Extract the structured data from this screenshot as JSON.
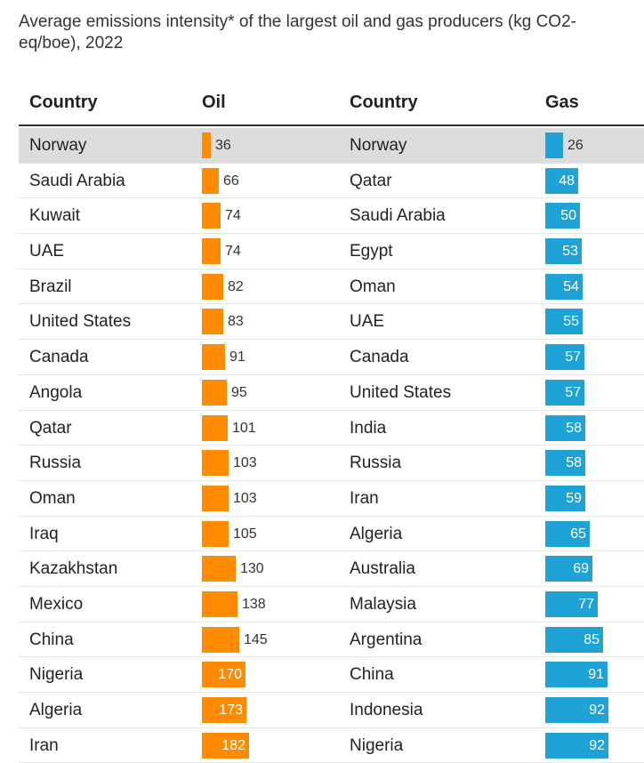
{
  "title": "Average emissions intensity* of the largest oil and gas producers (kg CO2-eq/boe), 2022",
  "headers": {
    "country_oil": "Country",
    "oil": "Oil",
    "country_gas": "Country",
    "gas": "Gas"
  },
  "colors": {
    "oil": "#ff8c00",
    "gas": "#1fa2d6",
    "highlight_row": "#dcdcdc"
  },
  "highlight_country": "Norway",
  "chart_data": {
    "type": "table",
    "title": "Average emissions intensity* of the largest oil and gas producers (kg CO2-eq/boe), 2022",
    "columns": [
      "Country",
      "Oil",
      "Country",
      "Gas"
    ],
    "oil": [
      {
        "country": "Norway",
        "value": 36
      },
      {
        "country": "Saudi Arabia",
        "value": 66
      },
      {
        "country": "Kuwait",
        "value": 74
      },
      {
        "country": "UAE",
        "value": 74
      },
      {
        "country": "Brazil",
        "value": 82
      },
      {
        "country": "United States",
        "value": 83
      },
      {
        "country": "Canada",
        "value": 91
      },
      {
        "country": "Angola",
        "value": 95
      },
      {
        "country": "Qatar",
        "value": 101
      },
      {
        "country": "Russia",
        "value": 103
      },
      {
        "country": "Oman",
        "value": 103
      },
      {
        "country": "Iraq",
        "value": 105
      },
      {
        "country": "Kazakhstan",
        "value": 130
      },
      {
        "country": "Mexico",
        "value": 138
      },
      {
        "country": "China",
        "value": 145
      },
      {
        "country": "Nigeria",
        "value": 170
      },
      {
        "country": "Algeria",
        "value": 173
      },
      {
        "country": "Iran",
        "value": 182
      }
    ],
    "gas": [
      {
        "country": "Norway",
        "value": 26
      },
      {
        "country": "Qatar",
        "value": 48
      },
      {
        "country": "Saudi Arabia",
        "value": 50
      },
      {
        "country": "Egypt",
        "value": 53
      },
      {
        "country": "Oman",
        "value": 54
      },
      {
        "country": "UAE",
        "value": 55
      },
      {
        "country": "Canada",
        "value": 57
      },
      {
        "country": "United States",
        "value": 57
      },
      {
        "country": "India",
        "value": 58
      },
      {
        "country": "Russia",
        "value": 58
      },
      {
        "country": "Iran",
        "value": 59
      },
      {
        "country": "Algeria",
        "value": 65
      },
      {
        "country": "Australia",
        "value": 69
      },
      {
        "country": "Malaysia",
        "value": 77
      },
      {
        "country": "Argentina",
        "value": 85
      },
      {
        "country": "China",
        "value": 91
      },
      {
        "country": "Indonesia",
        "value": 92
      },
      {
        "country": "Nigeria",
        "value": 92
      }
    ]
  }
}
